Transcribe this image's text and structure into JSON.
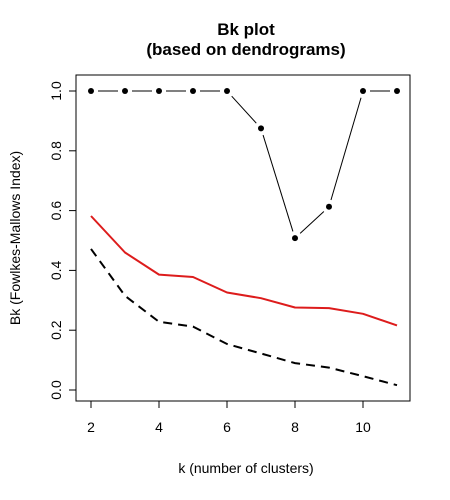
{
  "chart_data": {
    "type": "line",
    "title": "Bk plot",
    "subtitle": "(based on dendrograms)",
    "xlabel": "k (number of clusters)",
    "ylabel": "Bk (Fowlkes-Mallows Index)",
    "xlim": [
      2,
      11
    ],
    "ylim": [
      0.0,
      1.0
    ],
    "xticks": [
      2,
      4,
      6,
      8,
      10
    ],
    "xtick_labels": [
      "2",
      "4",
      "6",
      "8",
      "10"
    ],
    "yticks": [
      0.0,
      0.2,
      0.4,
      0.6,
      0.8,
      1.0
    ],
    "ytick_labels": [
      "0.0",
      "0.2",
      "0.4",
      "0.6",
      "0.8",
      "1.0"
    ],
    "grid": false,
    "x": [
      2,
      3,
      4,
      5,
      6,
      7,
      8,
      9,
      10,
      11
    ],
    "series": [
      {
        "values": [
          1.0,
          1.0,
          1.0,
          1.0,
          1.0,
          0.875,
          0.508,
          0.613,
          1.0,
          1.0
        ],
        "color": "#000000",
        "style": "points-and-lines"
      },
      {
        "values": [
          0.582,
          0.46,
          0.386,
          0.378,
          0.326,
          0.307,
          0.276,
          0.274,
          0.255,
          0.216
        ],
        "color": "#dd1c1c",
        "style": "solid"
      },
      {
        "values": [
          0.472,
          0.315,
          0.228,
          0.212,
          0.154,
          0.122,
          0.09,
          0.075,
          0.046,
          0.016
        ],
        "color": "#000000",
        "style": "dashed"
      }
    ]
  }
}
